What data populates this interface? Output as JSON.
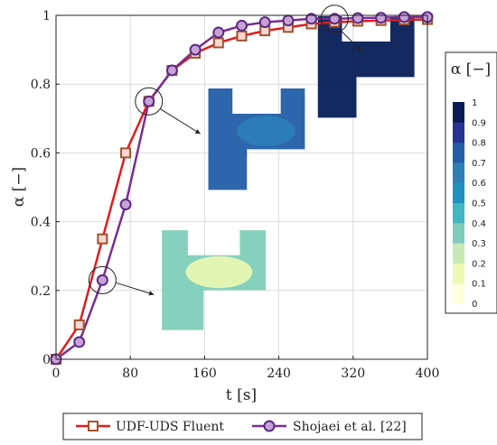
{
  "chart_data": {
    "type": "line",
    "xlabel": "t [s]",
    "ylabel": "α [−]",
    "xlim": [
      0,
      400
    ],
    "ylim": [
      0,
      1
    ],
    "xticks": [
      "0",
      "80",
      "160",
      "240",
      "320",
      "400"
    ],
    "yticks": [
      "0",
      "0.2",
      "0.4",
      "0.6",
      "0.8",
      "1"
    ],
    "grid": true,
    "series": [
      {
        "name": "UDF-UDS Fluent",
        "color": "#e31a1c",
        "marker": "square",
        "x": [
          0,
          25,
          50,
          75,
          100,
          125,
          150,
          175,
          200,
          225,
          250,
          275,
          300,
          325,
          350,
          375,
          400
        ],
        "y": [
          0,
          0.1,
          0.35,
          0.6,
          0.75,
          0.84,
          0.89,
          0.92,
          0.94,
          0.955,
          0.965,
          0.975,
          0.98,
          0.983,
          0.985,
          0.987,
          0.988
        ]
      },
      {
        "name": "Shojaei et al. [22]",
        "color": "#7b2d8e",
        "marker": "circle",
        "x": [
          0,
          25,
          50,
          75,
          100,
          125,
          150,
          175,
          200,
          225,
          250,
          275,
          300,
          325,
          350,
          375,
          400
        ],
        "y": [
          0,
          0.05,
          0.23,
          0.45,
          0.75,
          0.84,
          0.9,
          0.95,
          0.97,
          0.98,
          0.985,
          0.99,
          0.99,
          0.992,
          0.993,
          0.995,
          0.995
        ]
      }
    ],
    "annotations": [
      {
        "x": 50,
        "y": 0.23,
        "field_level": 0.3
      },
      {
        "x": 100,
        "y": 0.75,
        "field_level": 0.75
      },
      {
        "x": 300,
        "y": 0.99,
        "field_level": 0.98
      }
    ],
    "colorbar": {
      "title": "α [−]",
      "ticks": [
        "0",
        "0.1",
        "0.2",
        "0.3",
        "0.4",
        "0.5",
        "0.6",
        "0.7",
        "0.8",
        "0.9",
        "1"
      ],
      "colors": [
        "#ffffd9",
        "#edf8b1",
        "#c7e9b4",
        "#7fcdbb",
        "#41b6c4",
        "#1d91c0",
        "#2c7fb8",
        "#225ea8",
        "#253494",
        "#081d58"
      ]
    },
    "legend_position": "bottom"
  }
}
